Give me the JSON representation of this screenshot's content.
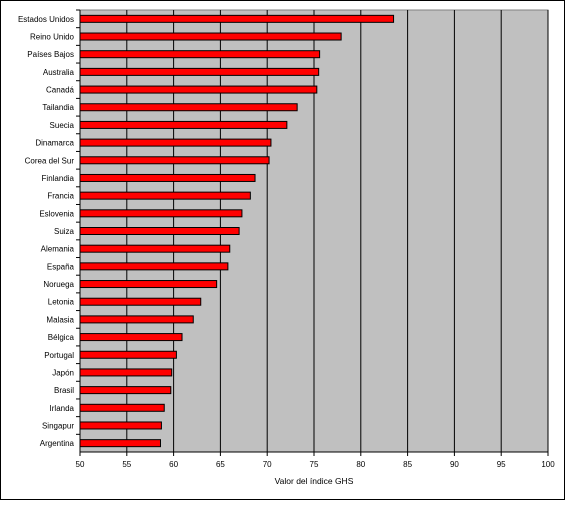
{
  "chart_data": {
    "type": "bar",
    "orientation": "horizontal",
    "categories": [
      "Estados Unidos",
      "Reino Unido",
      "Países Bajos",
      "Australia",
      "Canadá",
      "Tailandia",
      "Suecia",
      "Dinamarca",
      "Corea del Sur",
      "Finlandia",
      "Francia",
      "Eslovenia",
      "Suiza",
      "Alemania",
      "España",
      "Noruega",
      "Letonia",
      "Malasia",
      "Bélgica",
      "Portugal",
      "Japón",
      "Brasil",
      "Irlanda",
      "Singapur",
      "Argentina"
    ],
    "values": [
      83.5,
      77.9,
      75.6,
      75.5,
      75.3,
      73.2,
      72.1,
      70.4,
      70.2,
      68.7,
      68.2,
      67.3,
      67.0,
      66.0,
      65.8,
      64.6,
      62.9,
      62.1,
      60.9,
      60.3,
      59.8,
      59.7,
      59.0,
      58.7,
      58.6
    ],
    "xlim": [
      50,
      100
    ],
    "xticks": [
      "50",
      "55",
      "60",
      "65",
      "70",
      "75",
      "80",
      "85",
      "90",
      "95",
      "100"
    ],
    "xlabel": "Valor del índice GHS",
    "ylabel": "",
    "title": "",
    "grid": "vertical",
    "colors": {
      "bar": "#ff0000",
      "plot_background": "#c0c0c0",
      "gridline": "#000000"
    }
  }
}
